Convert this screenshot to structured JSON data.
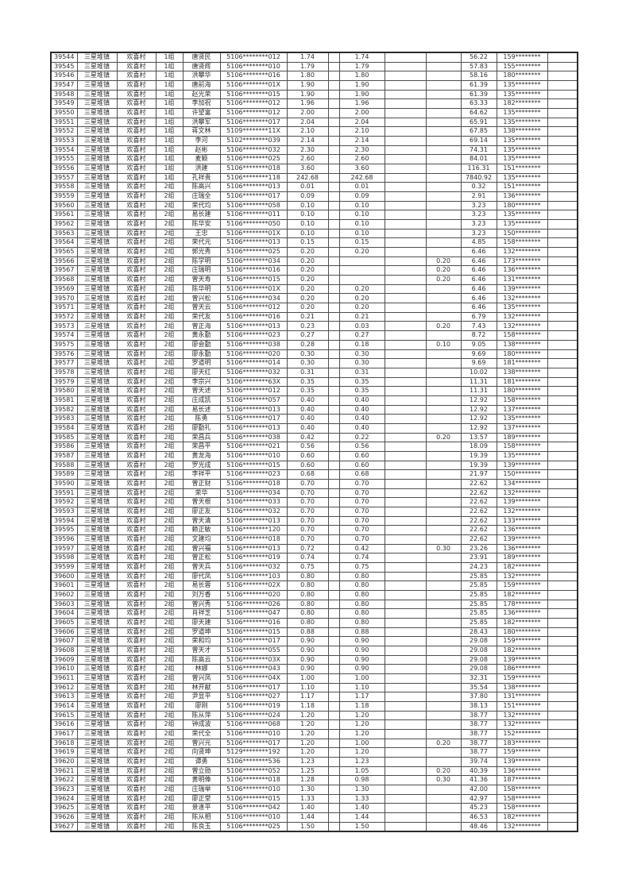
{
  "page": {
    "background": "#ffffff",
    "text_color": "#2f2f2f",
    "grid_color": "#4e4e4e"
  },
  "table": {
    "town": "三星堆镇",
    "village": "欢喜村",
    "row_fields": [
      "seq",
      "group",
      "name",
      "id",
      "value1",
      "value2",
      "adjust",
      "total",
      "phone"
    ],
    "rows": [
      [
        "39544",
        "1组",
        "唐贤民",
        "5106********012",
        "1.74",
        "1.74",
        "",
        "56.22",
        "159********"
      ],
      [
        "39545",
        "1组",
        "唐贤辉",
        "5106********010",
        "1.79",
        "1.79",
        "",
        "57.83",
        "155********"
      ],
      [
        "39546",
        "1组",
        "洪攀华",
        "5106********016",
        "1.80",
        "1.80",
        "",
        "58.16",
        "180********"
      ],
      [
        "39547",
        "1组",
        "唐前海",
        "5106********01X",
        "1.90",
        "1.90",
        "",
        "61.39",
        "135********"
      ],
      [
        "39548",
        "1组",
        "赵光荣",
        "5106********015",
        "1.90",
        "1.90",
        "",
        "61.39",
        "135********"
      ],
      [
        "39549",
        "1组",
        "李加祝",
        "5106********012",
        "1.96",
        "1.96",
        "",
        "63.33",
        "182********"
      ],
      [
        "39550",
        "1组",
        "许望富",
        "5106********012",
        "2.00",
        "2.00",
        "",
        "64.62",
        "135********"
      ],
      [
        "39551",
        "1组",
        "洪攀军",
        "5106********017",
        "2.04",
        "2.04",
        "",
        "65.91",
        "135********"
      ],
      [
        "39552",
        "1组",
        "蒋文林",
        "5109********11X",
        "2.10",
        "2.10",
        "",
        "67.85",
        "138********"
      ],
      [
        "39553",
        "1组",
        "李河",
        "5102********039",
        "2.14",
        "2.14",
        "",
        "69.14",
        "135********"
      ],
      [
        "39554",
        "1组",
        "赵彬",
        "5106********032",
        "2.30",
        "2.30",
        "",
        "74.31",
        "135********"
      ],
      [
        "39555",
        "1组",
        "麦颖",
        "5106********025",
        "2.60",
        "2.60",
        "",
        "84.01",
        "135********"
      ],
      [
        "39556",
        "1组",
        "洪建",
        "5106********018",
        "3.60",
        "3.60",
        "",
        "116.31",
        "151********"
      ],
      [
        "39557",
        "1组",
        "孔祥贵",
        "5106********118",
        "242.68",
        "242.68",
        "",
        "7840.92",
        "135********"
      ],
      [
        "39558",
        "2组",
        "陈高兴",
        "5106********013",
        "0.01",
        "0.01",
        "",
        "0.32",
        "151********"
      ],
      [
        "39559",
        "2组",
        "庄瑞全",
        "5106********017",
        "0.09",
        "0.09",
        "",
        "2.91",
        "136********"
      ],
      [
        "39560",
        "2组",
        "荣代均",
        "5106********058",
        "0.10",
        "0.10",
        "",
        "3.23",
        "180********"
      ],
      [
        "39561",
        "2组",
        "易长建",
        "5106********011",
        "0.10",
        "0.10",
        "",
        "3.23",
        "135********"
      ],
      [
        "39562",
        "2组",
        "陈华安",
        "5106********050",
        "0.10",
        "0.10",
        "",
        "3.23",
        "135********"
      ],
      [
        "39563",
        "2组",
        "王忠",
        "5106********01X",
        "0.10",
        "0.10",
        "",
        "3.23",
        "150********"
      ],
      [
        "39564",
        "2组",
        "荣代元",
        "5106********013",
        "0.15",
        "0.15",
        "",
        "4.85",
        "158********"
      ],
      [
        "39565",
        "2组",
        "郭光秀",
        "5106********025",
        "0.20",
        "0.20",
        "",
        "6.46",
        "132********"
      ],
      [
        "39566",
        "2组",
        "陈学明",
        "5106********034",
        "0.20",
        "",
        "0.20",
        "6.46",
        "173********"
      ],
      [
        "39567",
        "2组",
        "庄瑞明",
        "5106********016",
        "0.20",
        "",
        "0.20",
        "6.46",
        "136********"
      ],
      [
        "39568",
        "2组",
        "曾天寿",
        "5106********015",
        "0.20",
        "",
        "0.20",
        "6.46",
        "131********"
      ],
      [
        "39569",
        "2组",
        "陈华明",
        "5106********01X",
        "0.20",
        "0.20",
        "",
        "6.46",
        "139********"
      ],
      [
        "39570",
        "2组",
        "曾兴松",
        "5106********034",
        "0.20",
        "0.20",
        "",
        "6.46",
        "132********"
      ],
      [
        "39571",
        "2组",
        "曾天云",
        "5106********012",
        "0.20",
        "0.20",
        "",
        "6.46",
        "135********"
      ],
      [
        "39572",
        "2组",
        "荣代友",
        "5106********016",
        "0.21",
        "0.21",
        "",
        "6.79",
        "132********"
      ],
      [
        "39573",
        "2组",
        "曾正海",
        "5106********013",
        "0.23",
        "0.03",
        "0.20",
        "7.43",
        "132********"
      ],
      [
        "39574",
        "2组",
        "黄永勤",
        "5106********023",
        "0.27",
        "0.27",
        "",
        "8.72",
        "158********"
      ],
      [
        "39575",
        "2组",
        "廖会勤",
        "5106********038",
        "0.28",
        "0.18",
        "0.10",
        "9.05",
        "138********"
      ],
      [
        "39576",
        "2组",
        "廖永勤",
        "5106********020",
        "0.30",
        "0.30",
        "",
        "9.69",
        "180********"
      ],
      [
        "39577",
        "2组",
        "罗道明",
        "5106********014",
        "0.30",
        "0.30",
        "",
        "9.69",
        "181********"
      ],
      [
        "39578",
        "2组",
        "廖天红",
        "5106********032",
        "0.31",
        "0.31",
        "",
        "10.02",
        "138********"
      ],
      [
        "39579",
        "2组",
        "李宗兴",
        "5106********63X",
        "0.35",
        "0.35",
        "",
        "11.31",
        "181********"
      ],
      [
        "39580",
        "2组",
        "曾天述",
        "5106********012",
        "0.35",
        "0.35",
        "",
        "11.31",
        "180********"
      ],
      [
        "39581",
        "2组",
        "庄成凯",
        "5106********057",
        "0.40",
        "0.40",
        "",
        "12.92",
        "158********"
      ],
      [
        "39582",
        "2组",
        "易长述",
        "5106********013",
        "0.40",
        "0.40",
        "",
        "12.92",
        "137********"
      ],
      [
        "39583",
        "2组",
        "陈勇",
        "5106********017",
        "0.40",
        "0.40",
        "",
        "12.92",
        "135********"
      ],
      [
        "39584",
        "2组",
        "廖勤礼",
        "5106********013",
        "0.40",
        "0.40",
        "",
        "12.92",
        "137********"
      ],
      [
        "39585",
        "2组",
        "荣昌兵",
        "5106********038",
        "0.42",
        "0.22",
        "0.20",
        "13.57",
        "189********"
      ],
      [
        "39586",
        "2组",
        "荣昌平",
        "5106********021",
        "0.56",
        "0.56",
        "",
        "18.09",
        "158********"
      ],
      [
        "39587",
        "2组",
        "黄龙海",
        "5106********010",
        "0.60",
        "0.60",
        "",
        "19.39",
        "135********"
      ],
      [
        "39588",
        "2组",
        "罗光成",
        "5106********015",
        "0.60",
        "0.60",
        "",
        "19.39",
        "139********"
      ],
      [
        "39589",
        "2组",
        "李祥平",
        "5106********023",
        "0.68",
        "0.68",
        "",
        "21.97",
        "150********"
      ],
      [
        "39590",
        "2组",
        "曾正财",
        "5106********018",
        "0.70",
        "0.70",
        "",
        "22.62",
        "134********"
      ],
      [
        "39591",
        "2组",
        "荣华",
        "5106********034",
        "0.70",
        "0.70",
        "",
        "22.62",
        "132********"
      ],
      [
        "39592",
        "2组",
        "曾天根",
        "5106********033",
        "0.70",
        "0.70",
        "",
        "22.62",
        "139********"
      ],
      [
        "39593",
        "2组",
        "廖正友",
        "5106********032",
        "0.70",
        "0.70",
        "",
        "22.62",
        "132********"
      ],
      [
        "39594",
        "2组",
        "曾天清",
        "5106********013",
        "0.70",
        "0.70",
        "",
        "22.62",
        "133********"
      ],
      [
        "39595",
        "2组",
        "赖正敏",
        "5106********120",
        "0.70",
        "0.70",
        "",
        "22.62",
        "136********"
      ],
      [
        "39596",
        "2组",
        "文建均",
        "5106********018",
        "0.70",
        "0.70",
        "",
        "22.62",
        "139********"
      ],
      [
        "39597",
        "2组",
        "曾兴福",
        "5106********013",
        "0.72",
        "0.42",
        "0.30",
        "23.26",
        "136********"
      ],
      [
        "39598",
        "2组",
        "曾正松",
        "5106********019",
        "0.74",
        "0.74",
        "",
        "23.91",
        "189********"
      ],
      [
        "39599",
        "2组",
        "曾天兵",
        "5106********032",
        "0.75",
        "0.75",
        "",
        "24.23",
        "182********"
      ],
      [
        "39600",
        "2组",
        "廖代凤",
        "5106********103",
        "0.80",
        "0.80",
        "",
        "25.85",
        "132********"
      ],
      [
        "39601",
        "2组",
        "易长蓉",
        "5106********02X",
        "0.80",
        "0.80",
        "",
        "25.85",
        "159********"
      ],
      [
        "39602",
        "2组",
        "刘万香",
        "5106********020",
        "0.80",
        "0.80",
        "",
        "25.85",
        "182********"
      ],
      [
        "39603",
        "2组",
        "曾兴秀",
        "5106********026",
        "0.80",
        "0.80",
        "",
        "25.85",
        "178********"
      ],
      [
        "39604",
        "2组",
        "肖祥芝",
        "5106********047",
        "0.80",
        "0.80",
        "",
        "25.85",
        "136********"
      ],
      [
        "39605",
        "2组",
        "廖天建",
        "5106********016",
        "0.80",
        "0.80",
        "",
        "25.85",
        "182********"
      ],
      [
        "39606",
        "2组",
        "罗道坤",
        "5106********015",
        "0.88",
        "0.88",
        "",
        "28.43",
        "180********"
      ],
      [
        "39607",
        "2组",
        "荣和均",
        "5106********017",
        "0.90",
        "0.90",
        "",
        "29.08",
        "159********"
      ],
      [
        "39608",
        "2组",
        "曾天才",
        "5106********055",
        "0.90",
        "0.90",
        "",
        "29.08",
        "182********"
      ],
      [
        "39609",
        "2组",
        "陈高云",
        "5106********03X",
        "0.90",
        "0.90",
        "",
        "29.08",
        "139********"
      ],
      [
        "39610",
        "2组",
        "林娜",
        "5106********043",
        "0.90",
        "0.90",
        "",
        "29.08",
        "186********"
      ],
      [
        "39611",
        "2组",
        "曾兴凤",
        "5106********04X",
        "1.00",
        "1.00",
        "",
        "32.31",
        "159********"
      ],
      [
        "39612",
        "2组",
        "林开献",
        "5106********017",
        "1.10",
        "1.10",
        "",
        "35.54",
        "138********"
      ],
      [
        "39613",
        "2组",
        "尹显平",
        "5106********027",
        "1.17",
        "1.17",
        "",
        "37.80",
        "131********"
      ],
      [
        "39614",
        "2组",
        "廖刚",
        "5106********019",
        "1.18",
        "1.18",
        "",
        "38.13",
        "151********"
      ],
      [
        "39615",
        "2组",
        "陈从萍",
        "5106********024",
        "1.20",
        "1.20",
        "",
        "38.77",
        "132********"
      ],
      [
        "39616",
        "2组",
        "钟成波",
        "5106********068",
        "1.20",
        "1.20",
        "",
        "38.77",
        "132********"
      ],
      [
        "39617",
        "2组",
        "荣代全",
        "5106********010",
        "1.20",
        "1.20",
        "",
        "38.77",
        "152********"
      ],
      [
        "39618",
        "2组",
        "曾兴元",
        "5106********017",
        "1.20",
        "1.00",
        "0.20",
        "38.77",
        "183********"
      ],
      [
        "39619",
        "2组",
        "向贤坤",
        "5129********192",
        "1.20",
        "1.20",
        "",
        "38.77",
        "159********"
      ],
      [
        "39620",
        "2组",
        "谭勇",
        "5106********536",
        "1.23",
        "1.23",
        "",
        "39.74",
        "139********"
      ],
      [
        "39621",
        "2组",
        "曾立勋",
        "5106********052",
        "1.25",
        "1.05",
        "0.20",
        "40.39",
        "136********"
      ],
      [
        "39622",
        "2组",
        "黄明俸",
        "5106********018",
        "1.28",
        "0.98",
        "0.30",
        "41.36",
        "187********"
      ],
      [
        "39623",
        "2组",
        "庄瑞举",
        "5106********010",
        "1.30",
        "1.30",
        "",
        "42.00",
        "158********"
      ],
      [
        "39624",
        "2组",
        "廖正堂",
        "5106********015",
        "1.33",
        "1.33",
        "",
        "42.97",
        "158********"
      ],
      [
        "39625",
        "2组",
        "景逢平",
        "5106********042",
        "1.40",
        "1.40",
        "",
        "45.23",
        "158********"
      ],
      [
        "39626",
        "2组",
        "陈从相",
        "5106********010",
        "1.44",
        "1.44",
        "",
        "46.53",
        "182********"
      ],
      [
        "39627",
        "2组",
        "陈良玉",
        "5106********025",
        "1.50",
        "1.50",
        "",
        "48.46",
        "132********"
      ]
    ]
  }
}
